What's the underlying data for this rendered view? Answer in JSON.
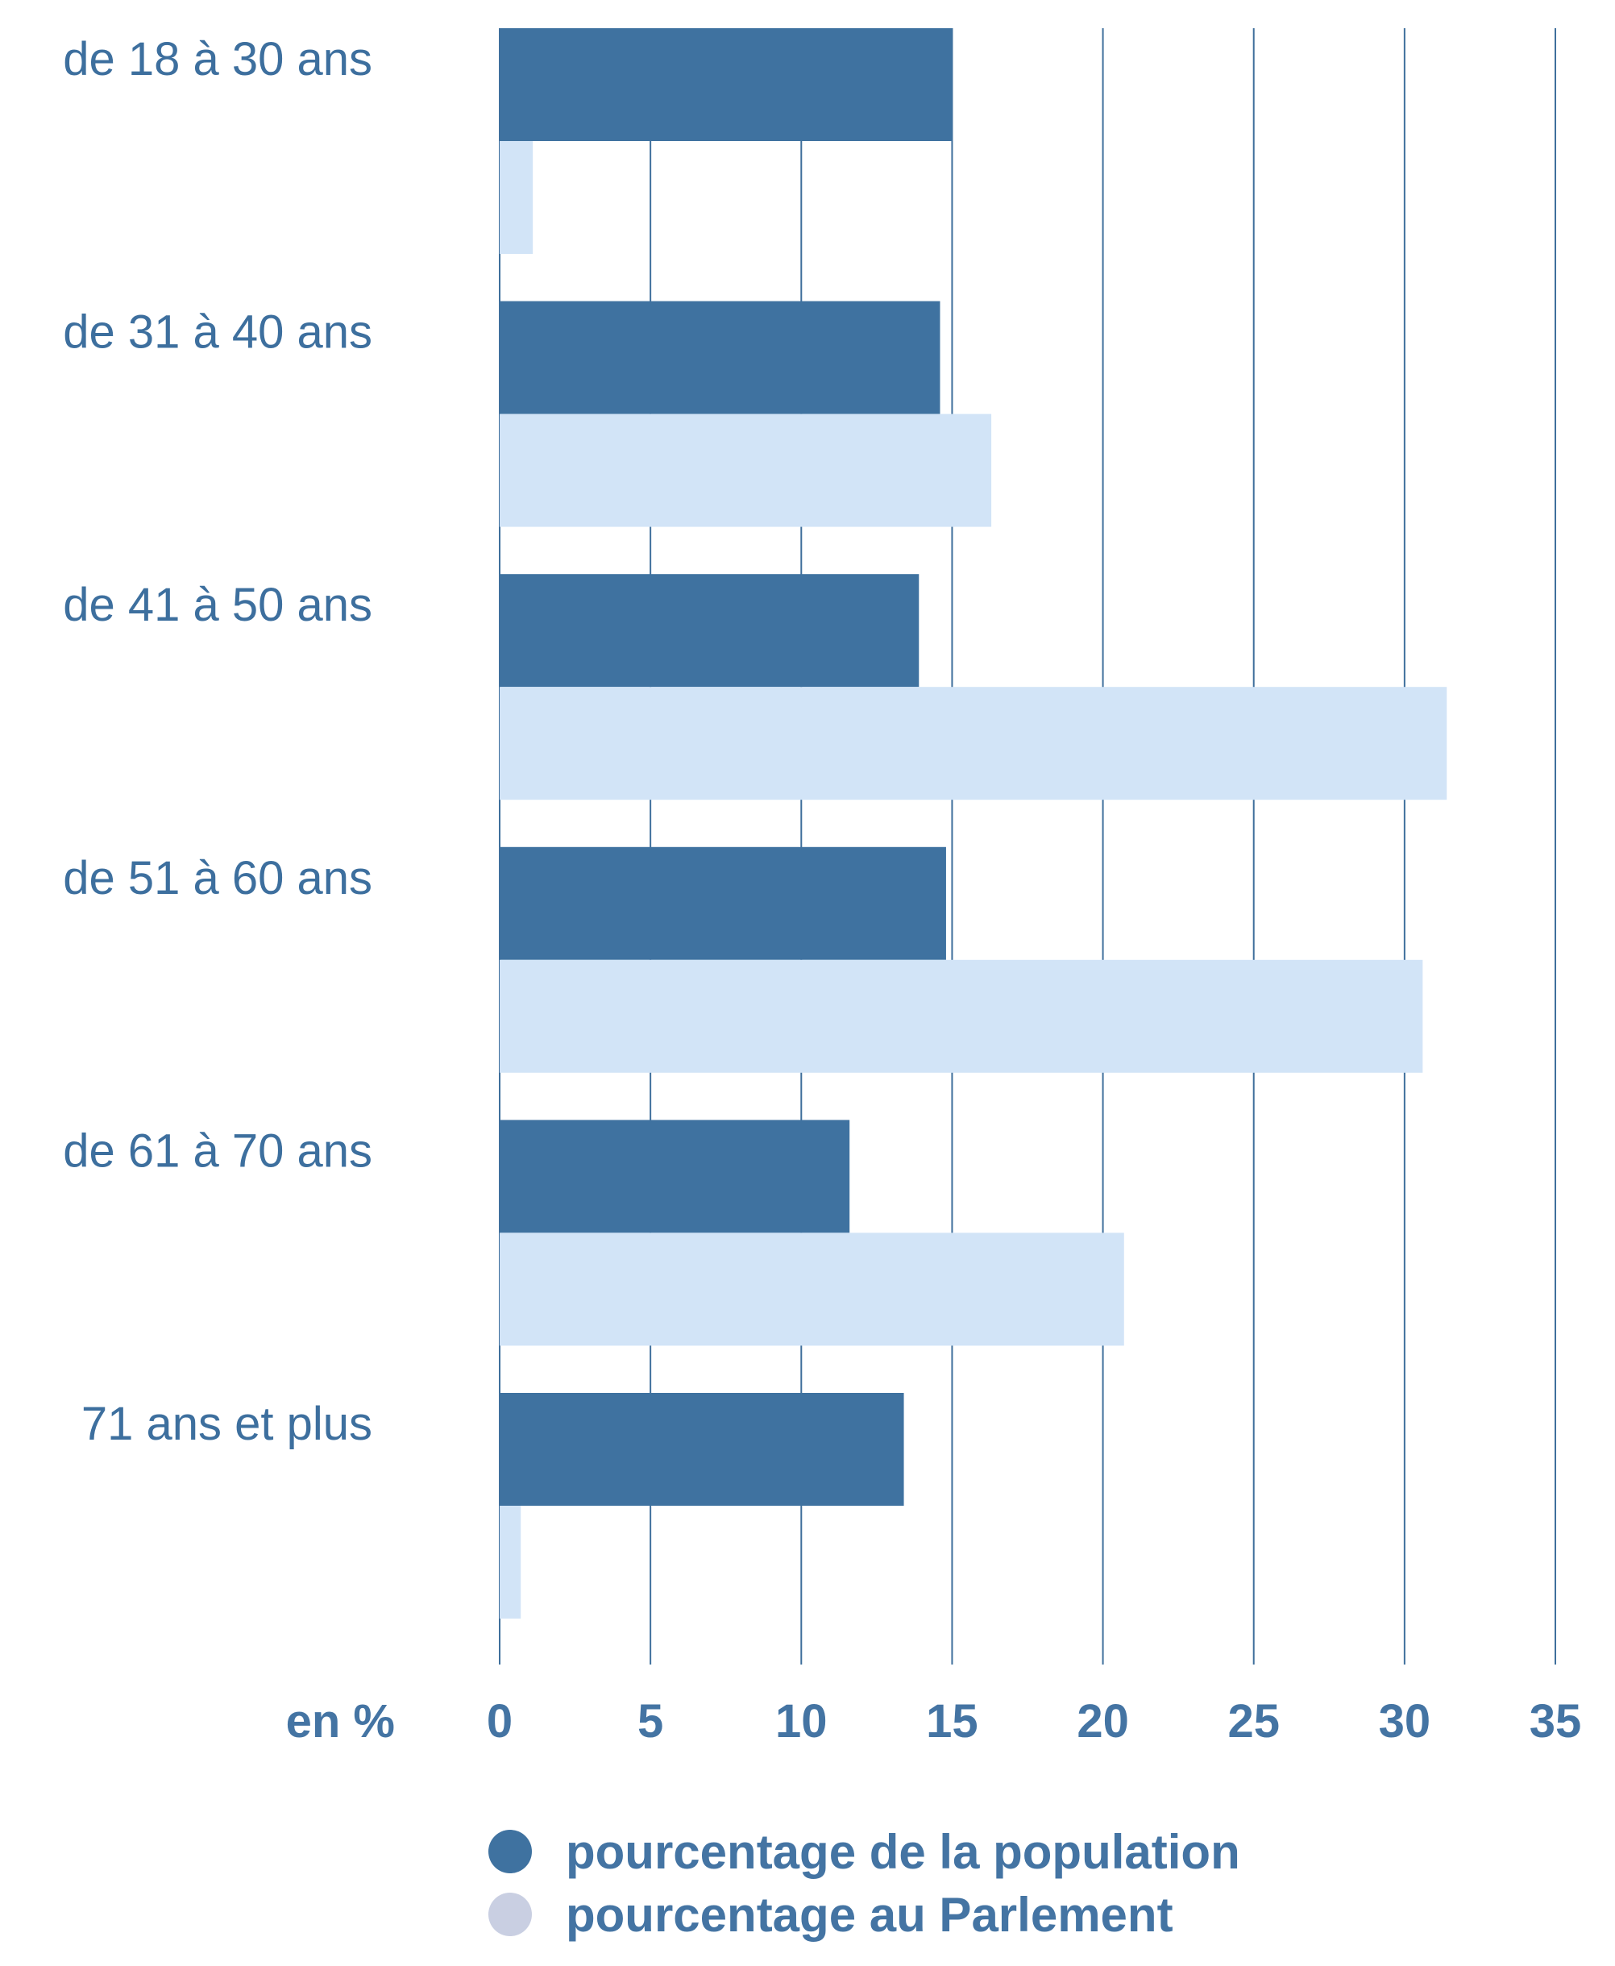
{
  "chart_data": {
    "type": "bar",
    "orientation": "horizontal",
    "categories": [
      "de 18 à 30 ans",
      "de 31 à 40 ans",
      "de 41 à 50 ans",
      "de 51 à 60 ans",
      "de 61 à 70 ans",
      "71 ans et plus"
    ],
    "series": [
      {
        "name": "pourcentage de la population",
        "values": [
          15.0,
          14.6,
          13.9,
          14.8,
          11.6,
          13.4
        ],
        "color": "#3f72a0"
      },
      {
        "name": "pourcentage au Parlement",
        "values": [
          1.1,
          16.3,
          31.4,
          30.6,
          20.7,
          0.7
        ],
        "color": "#d2e4f7",
        "legend_color": "#c9cfe2"
      }
    ],
    "xlim": [
      0,
      35
    ],
    "xticks": [
      0,
      5,
      10,
      15,
      20,
      25,
      30,
      35
    ],
    "xlabel": "en %",
    "grid": true,
    "grid_color": "#3f6f9c",
    "legend_position": "bottom"
  }
}
